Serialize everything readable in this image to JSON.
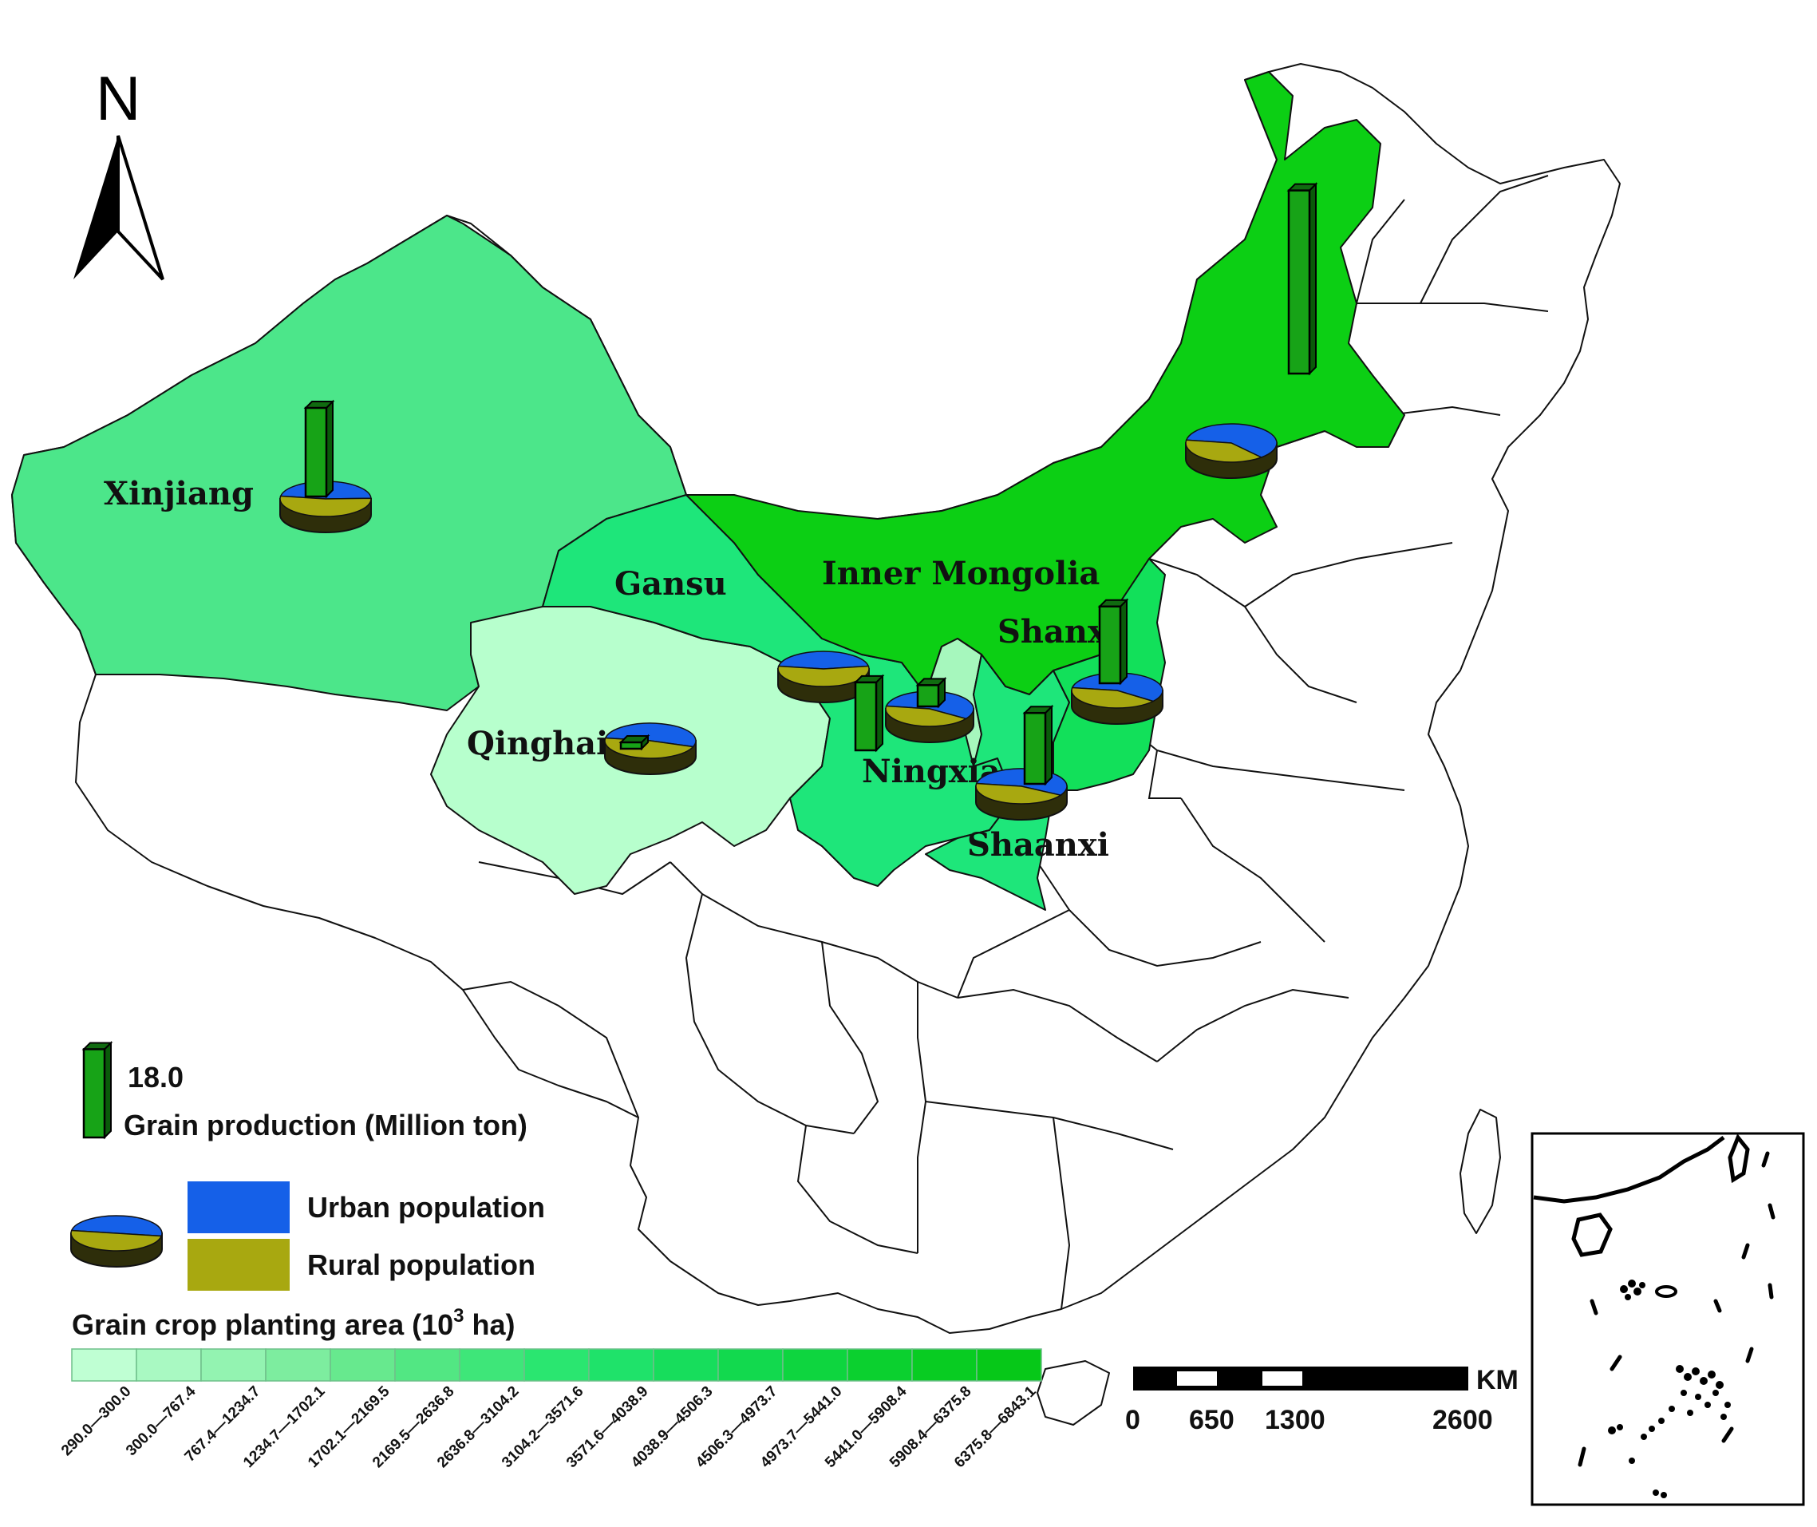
{
  "map": {
    "north_label": "N",
    "regions": [
      {
        "name": "Xinjiang",
        "label": "Xinjiang",
        "class_index": 4,
        "grain_production": 15.0,
        "urban_share": 0.47,
        "color": "#4ce68a"
      },
      {
        "name": "Gansu",
        "label": "Gansu",
        "class_index": 6,
        "grain_production": 11.5,
        "urban_share": 0.45,
        "color": "#1ee67a"
      },
      {
        "name": "Qinghai",
        "label": "Qinghai",
        "class_index": 0,
        "grain_production": 1.0,
        "urban_share": 0.53,
        "color": "#b7ffcd"
      },
      {
        "name": "Inner Mongolia",
        "label": "Inner Mongolia",
        "class_index": 12,
        "grain_production": 31.0,
        "urban_share": 0.61,
        "color": "#0ccf14"
      },
      {
        "name": "Ningxia",
        "label": "Ningxia",
        "class_index": 1,
        "grain_production": 3.6,
        "urban_share": 0.57,
        "color": "#a6f7bd"
      },
      {
        "name": "Shaanxi",
        "label": "Shaanxi",
        "class_index": 6,
        "grain_production": 12.0,
        "urban_share": 0.56,
        "color": "#1ee67a"
      },
      {
        "name": "Shanxi",
        "label": "Shanxi",
        "class_index": 8,
        "grain_production": 13.0,
        "urban_share": 0.58,
        "color": "#12e05a"
      }
    ]
  },
  "legend": {
    "grain_value": "18.0",
    "grain_title": "Grain production (Million ton)",
    "urban_label": "Urban population",
    "rural_label": "Rural population",
    "urban_color": "#1560e8",
    "rural_color": "#a8a810",
    "bar_color": "#17a317",
    "area_title_prefix": "Grain crop planting area (10",
    "area_title_sup": "3",
    "area_title_suffix": " ha)",
    "classes": [
      {
        "label": "290.0—300.0",
        "color": "#bfffd3"
      },
      {
        "label": "300.0—767.4",
        "color": "#a9f9c2"
      },
      {
        "label": "767.4—1234.7",
        "color": "#93f3b1"
      },
      {
        "label": "1234.7—1702.1",
        "color": "#7ded9f"
      },
      {
        "label": "1702.1—2169.5",
        "color": "#67e98e"
      },
      {
        "label": "2169.5—2636.8",
        "color": "#52e783"
      },
      {
        "label": "2636.8—3104.2",
        "color": "#3ee679"
      },
      {
        "label": "3104.2—3571.6",
        "color": "#2ae670"
      },
      {
        "label": "3571.6—4038.9",
        "color": "#1fe26a"
      },
      {
        "label": "4038.9—4506.3",
        "color": "#17dd5c"
      },
      {
        "label": "4506.3—4973.7",
        "color": "#12d94e"
      },
      {
        "label": "4973.7—5441.0",
        "color": "#0ed53f"
      },
      {
        "label": "5441.0—5908.4",
        "color": "#0bd02f"
      },
      {
        "label": "5908.4—6375.8",
        "color": "#08cc22"
      },
      {
        "label": "6375.8—6843.1",
        "color": "#06c818"
      }
    ]
  },
  "scale_bar": {
    "unit": "KM",
    "ticks": [
      "0",
      "650",
      "1300",
      "2600"
    ]
  }
}
